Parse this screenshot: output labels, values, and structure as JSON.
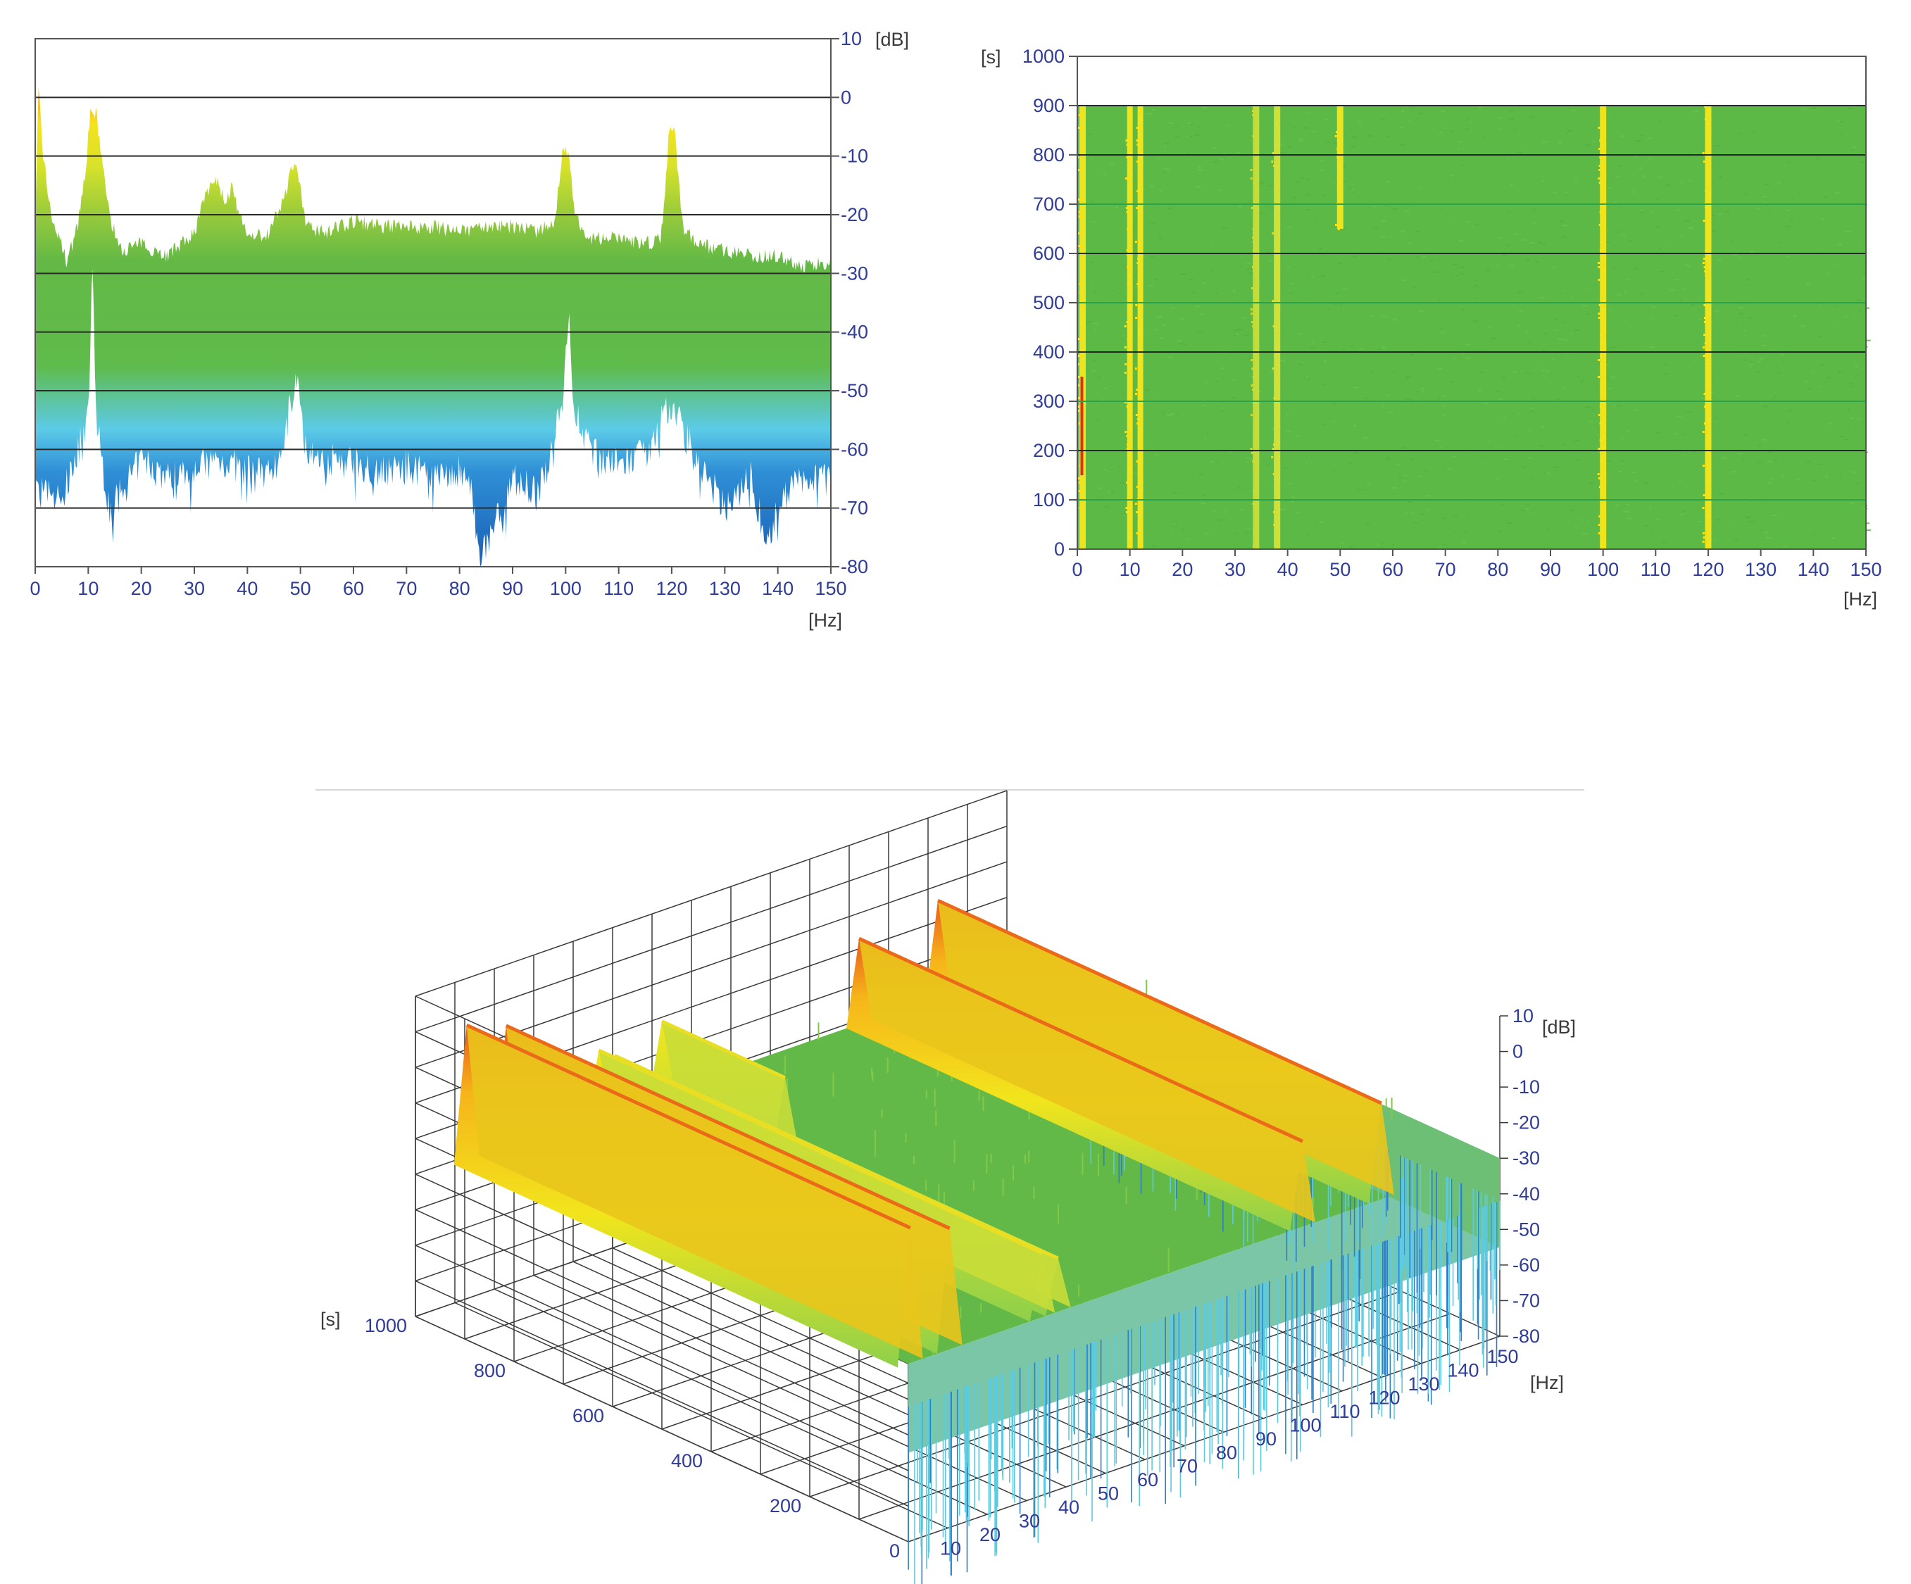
{
  "chart_data": [
    {
      "type": "area",
      "xlabel": "[Hz]",
      "ylabel": "[dB]",
      "xlim": [
        0,
        150
      ],
      "ylim": [
        -80,
        10
      ],
      "x_ticks": [
        "0",
        "10",
        "20",
        "30",
        "40",
        "50",
        "60",
        "70",
        "80",
        "90",
        "100",
        "110",
        "120",
        "130",
        "140",
        "150"
      ],
      "y_ticks": [
        "10",
        "0",
        "-10",
        "-20",
        "-30",
        "-40",
        "-50",
        "-60",
        "-70",
        "-80"
      ],
      "grid": true,
      "colormap": [
        "#1a5fb4",
        "#4fc1e9",
        "#5cb946",
        "#8cc63f",
        "#f5e61c",
        "#f39c12",
        "#e0301e"
      ],
      "upper_envelope": {
        "x": [
          0,
          0.6,
          1.5,
          3,
          6,
          8,
          9.5,
          10.5,
          11.5,
          12.5,
          14,
          16,
          20,
          25,
          30,
          32,
          34,
          36,
          37,
          38,
          40,
          44,
          47,
          48.5,
          49.5,
          51,
          55,
          60,
          65,
          70,
          75,
          80,
          85,
          90,
          95,
          98,
          99.5,
          100.5,
          102,
          105,
          110,
          115,
          118,
          119.5,
          120.5,
          122,
          125,
          130,
          135,
          140,
          145,
          150
        ],
        "y": [
          -20,
          2,
          -10,
          -20,
          -28,
          -22,
          -12,
          -2,
          -3,
          -10,
          -20,
          -26,
          -25,
          -27,
          -23,
          -17,
          -14,
          -18,
          -15,
          -19,
          -24,
          -23,
          -17,
          -11,
          -13,
          -22,
          -23,
          -21,
          -22,
          -22,
          -22,
          -23,
          -22,
          -22,
          -23,
          -21,
          -8,
          -10,
          -21,
          -24,
          -24,
          -25,
          -24,
          -6,
          -5,
          -22,
          -25,
          -26,
          -27,
          -27,
          -29,
          -28
        ]
      },
      "lower_envelope": {
        "x": [
          0,
          5,
          10,
          10.8,
          11.5,
          14,
          20,
          25,
          30,
          35,
          40,
          45,
          49.5,
          50.5,
          55,
          60,
          65,
          70,
          75,
          80,
          82,
          84,
          90,
          95,
          99.5,
          100.5,
          101.5,
          105,
          110,
          115,
          119.5,
          120.5,
          125,
          130,
          135,
          138,
          140,
          145,
          150
        ],
        "y": [
          -68,
          -70,
          -56,
          -30,
          -56,
          -72,
          -63,
          -66,
          -64,
          -63,
          -65,
          -66,
          -48,
          -60,
          -63,
          -63,
          -65,
          -64,
          -66,
          -65,
          -68,
          -80,
          -66,
          -69,
          -52,
          -38,
          -54,
          -62,
          -64,
          -62,
          -54,
          -54,
          -64,
          -71,
          -66,
          -78,
          -70,
          -66,
          -65
        ]
      }
    },
    {
      "type": "heatmap",
      "xlabel": "[Hz]",
      "ylabel": "[s]",
      "xlim": [
        0,
        150
      ],
      "ylim": [
        0,
        1000
      ],
      "x_ticks": [
        "0",
        "10",
        "20",
        "30",
        "40",
        "50",
        "60",
        "70",
        "80",
        "90",
        "100",
        "110",
        "120",
        "130",
        "140",
        "150"
      ],
      "y_ticks": [
        "1000",
        "900",
        "800",
        "700",
        "600",
        "500",
        "400",
        "300",
        "200",
        "100",
        "0"
      ],
      "data_extent_s": [
        0,
        900
      ],
      "background_level_color": "#5cb946",
      "bands": [
        {
          "hz": 1,
          "t_from": 0,
          "t_to": 900,
          "color": "#f5e61c"
        },
        {
          "hz": 10,
          "t_from": 0,
          "t_to": 900,
          "color": "#f5e61c"
        },
        {
          "hz": 12,
          "t_from": 0,
          "t_to": 900,
          "color": "#f5e61c"
        },
        {
          "hz": 34,
          "t_from": 0,
          "t_to": 900,
          "color": "#c7dd3a"
        },
        {
          "hz": 38,
          "t_from": 0,
          "t_to": 900,
          "color": "#d5e23a"
        },
        {
          "hz": 50,
          "t_from": 650,
          "t_to": 900,
          "color": "#f5e61c"
        },
        {
          "hz": 100,
          "t_from": 0,
          "t_to": 900,
          "color": "#f5e61c"
        },
        {
          "hz": 120,
          "t_from": 0,
          "t_to": 900,
          "color": "#f5e61c"
        }
      ]
    },
    {
      "type": "surface",
      "x_axis": {
        "label": "[Hz]",
        "ticks": [
          "10",
          "20",
          "30",
          "40",
          "50",
          "60",
          "70",
          "80",
          "90",
          "100",
          "110",
          "120",
          "130",
          "140",
          "150"
        ],
        "range": [
          0,
          150
        ]
      },
      "y_axis": {
        "label": "[s]",
        "ticks": [
          "0",
          "200",
          "400",
          "600",
          "800",
          "1000"
        ],
        "range": [
          0,
          1000
        ]
      },
      "z_axis": {
        "label": "[dB]",
        "ticks": [
          "10",
          "0",
          "-10",
          "-20",
          "-30",
          "-40",
          "-50",
          "-60",
          "-70",
          "-80"
        ],
        "range": [
          -80,
          10
        ]
      },
      "ridges": [
        {
          "hz": 0.5,
          "peak_db": 8
        },
        {
          "hz": 10.5,
          "peak_db": 4
        },
        {
          "hz": 34,
          "peak_db": -12
        },
        {
          "hz": 38,
          "peak_db": -15
        },
        {
          "hz": 50,
          "peak_db": -10
        },
        {
          "hz": 100,
          "peak_db": -6
        },
        {
          "hz": 120,
          "peak_db": -3
        }
      ],
      "floor_db": -30
    }
  ]
}
